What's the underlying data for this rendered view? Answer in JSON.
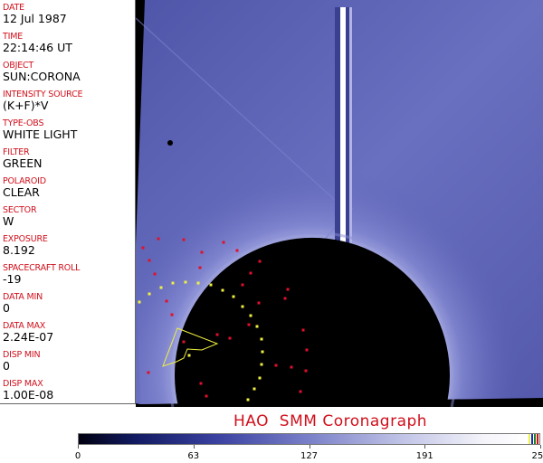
{
  "fields": [
    {
      "label": "DATE",
      "value": "12 Jul 1987"
    },
    {
      "label": "TIME",
      "value": "22:14:46 UT"
    },
    {
      "label": "OBJECT",
      "value": "SUN:CORONA"
    },
    {
      "label": "INTENSITY SOURCE",
      "value": "(K+F)*V"
    },
    {
      "label": "TYPE-OBS",
      "value": "WHITE LIGHT"
    },
    {
      "label": "FILTER",
      "value": "GREEN"
    },
    {
      "label": "POLAROID",
      "value": "CLEAR"
    },
    {
      "label": "SECTOR",
      "value": "W"
    },
    {
      "label": "EXPOSURE",
      "value": "8.192"
    },
    {
      "label": "SPACECRAFT ROLL",
      "value": "-19"
    },
    {
      "label": "DATA MIN",
      "value": "0"
    },
    {
      "label": "DATA MAX",
      "value": "2.24E-07"
    },
    {
      "label": "DISP MIN",
      "value": "0"
    },
    {
      "label": "DISP MAX",
      "value": "1.00E-08"
    }
  ],
  "title": "HAO  SMM Coronagraph",
  "colorbar": {
    "ticks": [
      "0",
      "63",
      "127",
      "191",
      "255"
    ],
    "min": 0,
    "max": 255
  },
  "colors": {
    "label": "#d0101c",
    "sky": "#5a60b4",
    "marker_red": "#e0102a",
    "marker_yellow": "#f0f040"
  }
}
